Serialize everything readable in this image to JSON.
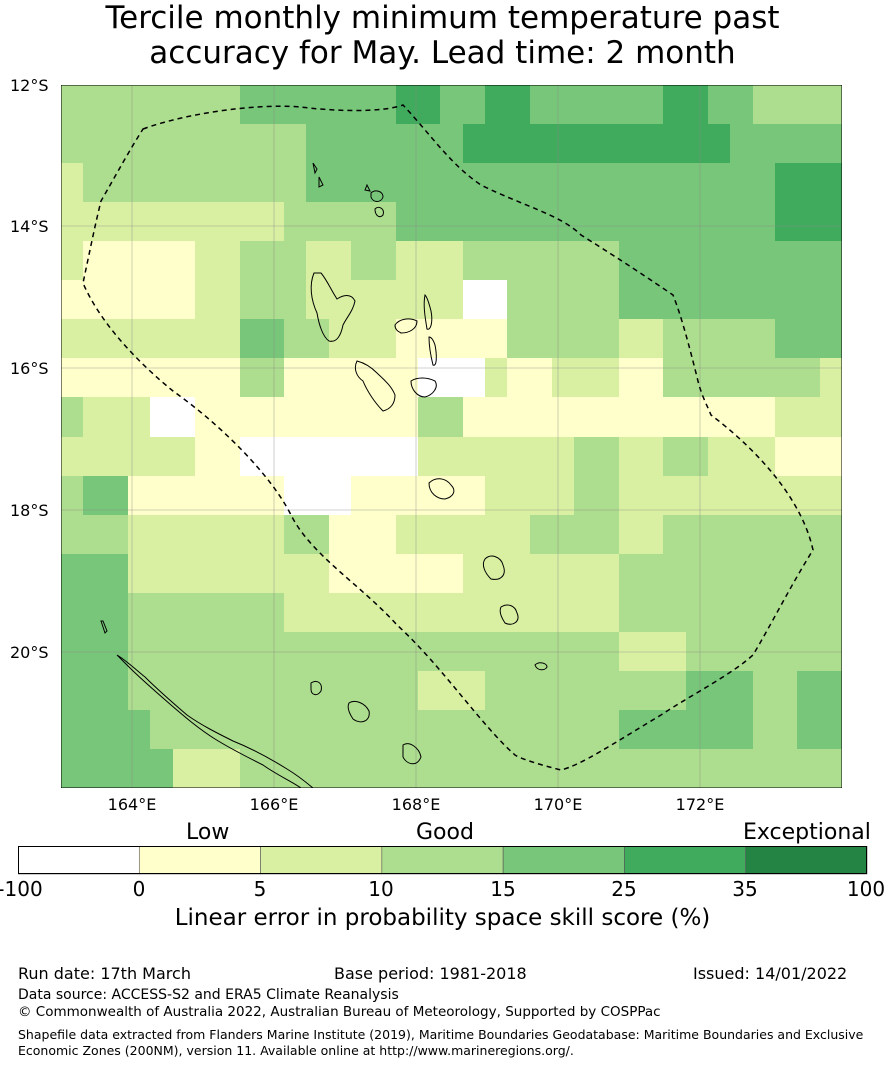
{
  "title": {
    "line1": "Tercile monthly minimum temperature past",
    "line2": "accuracy for May. Lead time: 2 month"
  },
  "map": {
    "lat_labels": [
      "12°S",
      "14°S",
      "16°S",
      "18°S",
      "20°S"
    ],
    "lon_labels": [
      "164°E",
      "166°E",
      "168°E",
      "170°E",
      "172°E"
    ],
    "lon_range": [
      163.0,
      174.0
    ],
    "lat_range": [
      -21.9,
      -12.0
    ],
    "grid_cell_deg": 0.833,
    "skill_grid_levels": [
      [
        3,
        3,
        3,
        3,
        3,
        3,
        3,
        3,
        4,
        4,
        4,
        4,
        4,
        4,
        4,
        5,
        5,
        4,
        4,
        5,
        5,
        4,
        4,
        4,
        4,
        4,
        4,
        5,
        5,
        4,
        4,
        3,
        3,
        3,
        3
      ],
      [
        3,
        3,
        3,
        3,
        3,
        3,
        3,
        3,
        3,
        3,
        3,
        4,
        4,
        4,
        4,
        4,
        4,
        4,
        5,
        5,
        5,
        5,
        5,
        5,
        5,
        5,
        5,
        5,
        5,
        5,
        4,
        4,
        4,
        4,
        4
      ],
      [
        2,
        3,
        3,
        3,
        3,
        3,
        3,
        3,
        3,
        3,
        3,
        4,
        4,
        4,
        4,
        4,
        4,
        4,
        4,
        4,
        4,
        4,
        4,
        4,
        4,
        4,
        4,
        4,
        4,
        4,
        4,
        4,
        5,
        5,
        5
      ],
      [
        2,
        2,
        2,
        2,
        2,
        2,
        2,
        2,
        2,
        2,
        3,
        3,
        3,
        3,
        3,
        4,
        4,
        4,
        4,
        4,
        4,
        4,
        4,
        4,
        4,
        4,
        4,
        4,
        4,
        4,
        4,
        4,
        5,
        5,
        5
      ],
      [
        2,
        1,
        1,
        1,
        1,
        1,
        2,
        2,
        3,
        3,
        3,
        2,
        2,
        3,
        3,
        2,
        2,
        2,
        3,
        3,
        3,
        3,
        3,
        3,
        3,
        4,
        4,
        4,
        4,
        4,
        4,
        4,
        4,
        4,
        4
      ],
      [
        1,
        1,
        1,
        1,
        1,
        1,
        2,
        2,
        3,
        3,
        3,
        2,
        2,
        2,
        2,
        2,
        2,
        2,
        0,
        0,
        3,
        3,
        3,
        3,
        3,
        4,
        4,
        4,
        4,
        4,
        4,
        4,
        4,
        4,
        4
      ],
      [
        2,
        2,
        2,
        2,
        2,
        2,
        2,
        2,
        4,
        4,
        3,
        3,
        2,
        2,
        2,
        1,
        1,
        1,
        1,
        1,
        3,
        3,
        3,
        3,
        3,
        2,
        2,
        3,
        3,
        3,
        3,
        3,
        4,
        4,
        4
      ],
      [
        1,
        1,
        1,
        1,
        1,
        1,
        1,
        1,
        3,
        3,
        1,
        1,
        1,
        1,
        1,
        1,
        0,
        0,
        0,
        2,
        1,
        1,
        2,
        2,
        2,
        1,
        1,
        3,
        3,
        3,
        3,
        3,
        3,
        3,
        2
      ],
      [
        3,
        2,
        2,
        2,
        0,
        0,
        1,
        1,
        1,
        1,
        1,
        1,
        1,
        1,
        1,
        1,
        3,
        3,
        1,
        1,
        1,
        1,
        1,
        1,
        1,
        1,
        1,
        1,
        1,
        1,
        1,
        1,
        2,
        2,
        2
      ],
      [
        2,
        2,
        2,
        2,
        2,
        2,
        1,
        1,
        0,
        0,
        0,
        0,
        0,
        0,
        0,
        0,
        2,
        2,
        2,
        2,
        2,
        2,
        2,
        3,
        3,
        2,
        2,
        3,
        3,
        2,
        2,
        2,
        1,
        1,
        1
      ],
      [
        3,
        4,
        4,
        1,
        1,
        1,
        1,
        1,
        1,
        1,
        0,
        0,
        0,
        1,
        1,
        1,
        1,
        1,
        1,
        2,
        2,
        2,
        2,
        3,
        3,
        2,
        2,
        2,
        2,
        2,
        2,
        2,
        2,
        2,
        2
      ],
      [
        3,
        3,
        3,
        2,
        2,
        2,
        2,
        2,
        2,
        2,
        3,
        3,
        1,
        1,
        1,
        2,
        2,
        2,
        2,
        2,
        2,
        3,
        3,
        3,
        3,
        2,
        2,
        3,
        3,
        3,
        3,
        3,
        3,
        3,
        3
      ],
      [
        4,
        4,
        4,
        2,
        2,
        2,
        2,
        2,
        2,
        2,
        2,
        2,
        1,
        1,
        1,
        1,
        1,
        1,
        2,
        2,
        2,
        2,
        2,
        2,
        2,
        3,
        3,
        3,
        3,
        3,
        3,
        3,
        3,
        3,
        3
      ],
      [
        4,
        4,
        4,
        3,
        3,
        3,
        3,
        3,
        3,
        3,
        2,
        2,
        2,
        2,
        2,
        2,
        2,
        2,
        2,
        2,
        2,
        2,
        2,
        2,
        2,
        3,
        3,
        3,
        3,
        3,
        3,
        3,
        3,
        3,
        3
      ],
      [
        4,
        4,
        4,
        3,
        3,
        3,
        3,
        3,
        3,
        3,
        3,
        3,
        3,
        3,
        3,
        3,
        3,
        3,
        3,
        3,
        3,
        3,
        3,
        3,
        3,
        2,
        2,
        2,
        3,
        3,
        3,
        3,
        3,
        3,
        3
      ],
      [
        4,
        4,
        4,
        3,
        3,
        3,
        3,
        3,
        3,
        3,
        3,
        3,
        3,
        3,
        3,
        3,
        2,
        2,
        2,
        3,
        3,
        3,
        3,
        3,
        3,
        3,
        3,
        3,
        4,
        4,
        4,
        3,
        3,
        4,
        4
      ],
      [
        4,
        4,
        4,
        4,
        3,
        3,
        3,
        3,
        3,
        3,
        3,
        3,
        3,
        3,
        3,
        3,
        3,
        3,
        3,
        3,
        3,
        3,
        3,
        3,
        3,
        4,
        4,
        4,
        4,
        4,
        4,
        3,
        3,
        4,
        4
      ],
      [
        4,
        4,
        4,
        4,
        4,
        2,
        2,
        2,
        3,
        3,
        3,
        3,
        3,
        3,
        3,
        3,
        3,
        3,
        3,
        3,
        3,
        3,
        3,
        3,
        3,
        3,
        3,
        3,
        3,
        3,
        3,
        3,
        3,
        3,
        3
      ]
    ]
  },
  "colorbar": {
    "categories": [
      "Low",
      "Good",
      "Exceptional"
    ],
    "ticks": [
      "-100",
      "0",
      "5",
      "10",
      "15",
      "25",
      "35",
      "100"
    ],
    "colors": [
      "#ffffff",
      "#ffffcc",
      "#d9f0a3",
      "#addd8e",
      "#78c679",
      "#41ab5d",
      "#238443"
    ],
    "title": "Linear error in probability space skill score (%)"
  },
  "footer": {
    "run_date": "Run date: 17th March",
    "base_period": "Base period: 1981-2018",
    "issued": "Issued: 14/01/2022",
    "data_source": "Data source: ACCESS-S2 and ERA5 Climate Reanalysis",
    "copyright": "© Commonwealth of Australia 2022, Australian Bureau of Meteorology, Supported by COSPPac",
    "shapefile": "Shapefile data extracted from Flanders Marine Institute (2019), Maritime Boundaries Geodatabase: Maritime Boundaries and Exclusive Economic Zones (200NM), version 11. Available online at http://www.marineregions.org/."
  }
}
